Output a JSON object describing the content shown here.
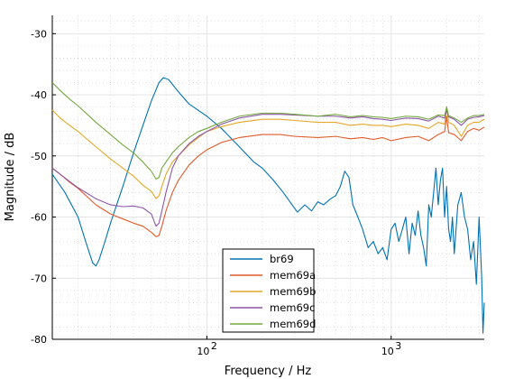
{
  "chart_data": {
    "type": "line",
    "title": "",
    "xlabel": "Frequency / Hz",
    "ylabel": "Magnitude / dB",
    "xscale": "log",
    "xlim": [
      14.5,
      3200
    ],
    "ylim": [
      -80,
      -27
    ],
    "xticks": [
      {
        "value": 100,
        "base": "10",
        "exp": "2"
      },
      {
        "value": 1000,
        "base": "10",
        "exp": "3"
      }
    ],
    "yticks": [
      {
        "value": -30,
        "label": "-30"
      },
      {
        "value": -40,
        "label": "-40"
      },
      {
        "value": -50,
        "label": "-50"
      },
      {
        "value": -60,
        "label": "-60"
      },
      {
        "value": -70,
        "label": "-70"
      },
      {
        "value": -80,
        "label": "-80"
      }
    ],
    "grid": true,
    "legend_position": "bottom-center",
    "series": [
      {
        "name": "br69",
        "color": "#0072b2",
        "points": [
          [
            14.5,
            -53
          ],
          [
            17,
            -56
          ],
          [
            20,
            -60
          ],
          [
            22,
            -64
          ],
          [
            24,
            -67.5
          ],
          [
            25,
            -68
          ],
          [
            26,
            -67
          ],
          [
            28,
            -64
          ],
          [
            30,
            -61
          ],
          [
            35,
            -55
          ],
          [
            40,
            -49.5
          ],
          [
            45,
            -45
          ],
          [
            50,
            -41
          ],
          [
            55,
            -38
          ],
          [
            58,
            -37.2
          ],
          [
            62,
            -37.5
          ],
          [
            70,
            -39.5
          ],
          [
            80,
            -41.5
          ],
          [
            100,
            -43.5
          ],
          [
            120,
            -45.5
          ],
          [
            150,
            -48.5
          ],
          [
            180,
            -51
          ],
          [
            200,
            -52
          ],
          [
            230,
            -54
          ],
          [
            260,
            -56
          ],
          [
            290,
            -58
          ],
          [
            310,
            -59.2
          ],
          [
            340,
            -58
          ],
          [
            370,
            -59
          ],
          [
            400,
            -57.5
          ],
          [
            430,
            -58
          ],
          [
            470,
            -57
          ],
          [
            500,
            -56.5
          ],
          [
            530,
            -55
          ],
          [
            560,
            -52.5
          ],
          [
            590,
            -53.5
          ],
          [
            620,
            -58
          ],
          [
            650,
            -59.5
          ],
          [
            700,
            -62
          ],
          [
            750,
            -65
          ],
          [
            800,
            -64
          ],
          [
            850,
            -66
          ],
          [
            900,
            -65
          ],
          [
            950,
            -67
          ],
          [
            1000,
            -62
          ],
          [
            1050,
            -61
          ],
          [
            1100,
            -64
          ],
          [
            1150,
            -62
          ],
          [
            1200,
            -60
          ],
          [
            1250,
            -66
          ],
          [
            1300,
            -61
          ],
          [
            1350,
            -63
          ],
          [
            1400,
            -59
          ],
          [
            1450,
            -63
          ],
          [
            1500,
            -65
          ],
          [
            1550,
            -68
          ],
          [
            1600,
            -58
          ],
          [
            1650,
            -60
          ],
          [
            1700,
            -56
          ],
          [
            1750,
            -52
          ],
          [
            1800,
            -58
          ],
          [
            1850,
            -54
          ],
          [
            1900,
            -52
          ],
          [
            1950,
            -60
          ],
          [
            2000,
            -55
          ],
          [
            2050,
            -62
          ],
          [
            2100,
            -64
          ],
          [
            2150,
            -60
          ],
          [
            2200,
            -66
          ],
          [
            2300,
            -58
          ],
          [
            2400,
            -56
          ],
          [
            2500,
            -60
          ],
          [
            2600,
            -62
          ],
          [
            2700,
            -67
          ],
          [
            2800,
            -64
          ],
          [
            2900,
            -71
          ],
          [
            3000,
            -60
          ],
          [
            3050,
            -65
          ],
          [
            3100,
            -70
          ],
          [
            3150,
            -79
          ],
          [
            3200,
            -74
          ]
        ]
      },
      {
        "name": "mem69a",
        "color": "#e05a2a",
        "points": [
          [
            14.5,
            -52
          ],
          [
            16,
            -53
          ],
          [
            18,
            -54.3
          ],
          [
            20,
            -55.3
          ],
          [
            25,
            -58
          ],
          [
            30,
            -59.5
          ],
          [
            35,
            -60.3
          ],
          [
            40,
            -61
          ],
          [
            45,
            -61.5
          ],
          [
            50,
            -62.5
          ],
          [
            53,
            -63.2
          ],
          [
            55,
            -63
          ],
          [
            57,
            -61.5
          ],
          [
            60,
            -59
          ],
          [
            65,
            -56
          ],
          [
            70,
            -54
          ],
          [
            80,
            -51.5
          ],
          [
            90,
            -50
          ],
          [
            100,
            -49
          ],
          [
            120,
            -47.8
          ],
          [
            150,
            -47
          ],
          [
            200,
            -46.5
          ],
          [
            250,
            -46.5
          ],
          [
            300,
            -46.8
          ],
          [
            400,
            -47
          ],
          [
            500,
            -46.8
          ],
          [
            600,
            -47.2
          ],
          [
            700,
            -47
          ],
          [
            800,
            -47.3
          ],
          [
            900,
            -47
          ],
          [
            1000,
            -47.5
          ],
          [
            1200,
            -47
          ],
          [
            1400,
            -46.8
          ],
          [
            1600,
            -47.5
          ],
          [
            1800,
            -46.5
          ],
          [
            1950,
            -46
          ],
          [
            2000,
            -43.5
          ],
          [
            2050,
            -46.2
          ],
          [
            2200,
            -46.5
          ],
          [
            2400,
            -47.5
          ],
          [
            2600,
            -46
          ],
          [
            2800,
            -45.5
          ],
          [
            3000,
            -45.8
          ],
          [
            3200,
            -45.3
          ]
        ]
      },
      {
        "name": "mem69b",
        "color": "#e5a72a",
        "points": [
          [
            14.5,
            -42.5
          ],
          [
            16,
            -43.8
          ],
          [
            18,
            -45
          ],
          [
            20,
            -46
          ],
          [
            25,
            -48.5
          ],
          [
            30,
            -50.5
          ],
          [
            35,
            -52
          ],
          [
            40,
            -53.3
          ],
          [
            45,
            -54.8
          ],
          [
            50,
            -55.8
          ],
          [
            53,
            -57
          ],
          [
            55,
            -56.5
          ],
          [
            57,
            -55
          ],
          [
            60,
            -53
          ],
          [
            65,
            -51
          ],
          [
            70,
            -50
          ],
          [
            80,
            -48.2
          ],
          [
            90,
            -47
          ],
          [
            100,
            -46
          ],
          [
            120,
            -45.2
          ],
          [
            150,
            -44.5
          ],
          [
            200,
            -44
          ],
          [
            250,
            -44
          ],
          [
            300,
            -44.2
          ],
          [
            400,
            -44.5
          ],
          [
            500,
            -44.5
          ],
          [
            600,
            -45
          ],
          [
            700,
            -44.8
          ],
          [
            800,
            -45
          ],
          [
            900,
            -45
          ],
          [
            1000,
            -45.2
          ],
          [
            1200,
            -44.8
          ],
          [
            1400,
            -45
          ],
          [
            1600,
            -45.5
          ],
          [
            1800,
            -44.5
          ],
          [
            1950,
            -44.8
          ],
          [
            2000,
            -42
          ],
          [
            2050,
            -44.5
          ],
          [
            2200,
            -45
          ],
          [
            2400,
            -46.8
          ],
          [
            2600,
            -45
          ],
          [
            2800,
            -44.5
          ],
          [
            3000,
            -44.5
          ],
          [
            3200,
            -44
          ]
        ]
      },
      {
        "name": "mem69c",
        "color": "#8e56a6",
        "points": [
          [
            14.5,
            -52
          ],
          [
            16,
            -53
          ],
          [
            18,
            -54.2
          ],
          [
            20,
            -55.2
          ],
          [
            25,
            -57
          ],
          [
            30,
            -58
          ],
          [
            35,
            -58.3
          ],
          [
            40,
            -58.2
          ],
          [
            45,
            -58.5
          ],
          [
            50,
            -59.5
          ],
          [
            53,
            -61.5
          ],
          [
            55,
            -61
          ],
          [
            57,
            -59
          ],
          [
            60,
            -56
          ],
          [
            65,
            -52
          ],
          [
            70,
            -50
          ],
          [
            80,
            -48
          ],
          [
            90,
            -46.8
          ],
          [
            100,
            -46
          ],
          [
            120,
            -44.8
          ],
          [
            150,
            -43.8
          ],
          [
            200,
            -43.2
          ],
          [
            250,
            -43.2
          ],
          [
            300,
            -43.3
          ],
          [
            400,
            -43.5
          ],
          [
            500,
            -43.5
          ],
          [
            600,
            -43.8
          ],
          [
            700,
            -43.6
          ],
          [
            800,
            -43.9
          ],
          [
            900,
            -44
          ],
          [
            1000,
            -44.2
          ],
          [
            1200,
            -43.8
          ],
          [
            1400,
            -43.9
          ],
          [
            1600,
            -44.3
          ],
          [
            1800,
            -43.5
          ],
          [
            1950,
            -43.8
          ],
          [
            2000,
            -42.5
          ],
          [
            2050,
            -43.6
          ],
          [
            2200,
            -44
          ],
          [
            2400,
            -45
          ],
          [
            2600,
            -44
          ],
          [
            2800,
            -43.7
          ],
          [
            3000,
            -43.6
          ],
          [
            3200,
            -43.4
          ]
        ]
      },
      {
        "name": "mem69d",
        "color": "#72a93f",
        "points": [
          [
            14.5,
            -38
          ],
          [
            16,
            -39.3
          ],
          [
            18,
            -40.7
          ],
          [
            20,
            -41.8
          ],
          [
            25,
            -44.5
          ],
          [
            30,
            -46.5
          ],
          [
            35,
            -48.2
          ],
          [
            40,
            -49.5
          ],
          [
            45,
            -51
          ],
          [
            50,
            -52.5
          ],
          [
            53,
            -53.8
          ],
          [
            55,
            -53.5
          ],
          [
            57,
            -52
          ],
          [
            60,
            -51
          ],
          [
            65,
            -49.5
          ],
          [
            70,
            -48.5
          ],
          [
            80,
            -47
          ],
          [
            90,
            -46
          ],
          [
            100,
            -45.5
          ],
          [
            120,
            -44.5
          ],
          [
            150,
            -43.5
          ],
          [
            200,
            -43
          ],
          [
            250,
            -43
          ],
          [
            300,
            -43.2
          ],
          [
            400,
            -43.5
          ],
          [
            500,
            -43.2
          ],
          [
            600,
            -43.6
          ],
          [
            700,
            -43.4
          ],
          [
            800,
            -43.6
          ],
          [
            900,
            -43.7
          ],
          [
            1000,
            -43.9
          ],
          [
            1200,
            -43.5
          ],
          [
            1400,
            -43.6
          ],
          [
            1600,
            -44
          ],
          [
            1800,
            -43.3
          ],
          [
            1950,
            -43.4
          ],
          [
            2000,
            -42
          ],
          [
            2050,
            -43.4
          ],
          [
            2200,
            -43.8
          ],
          [
            2400,
            -44.5
          ],
          [
            2600,
            -43.8
          ],
          [
            2800,
            -43.4
          ],
          [
            3000,
            -43.4
          ],
          [
            3200,
            -43.2
          ]
        ]
      }
    ]
  }
}
